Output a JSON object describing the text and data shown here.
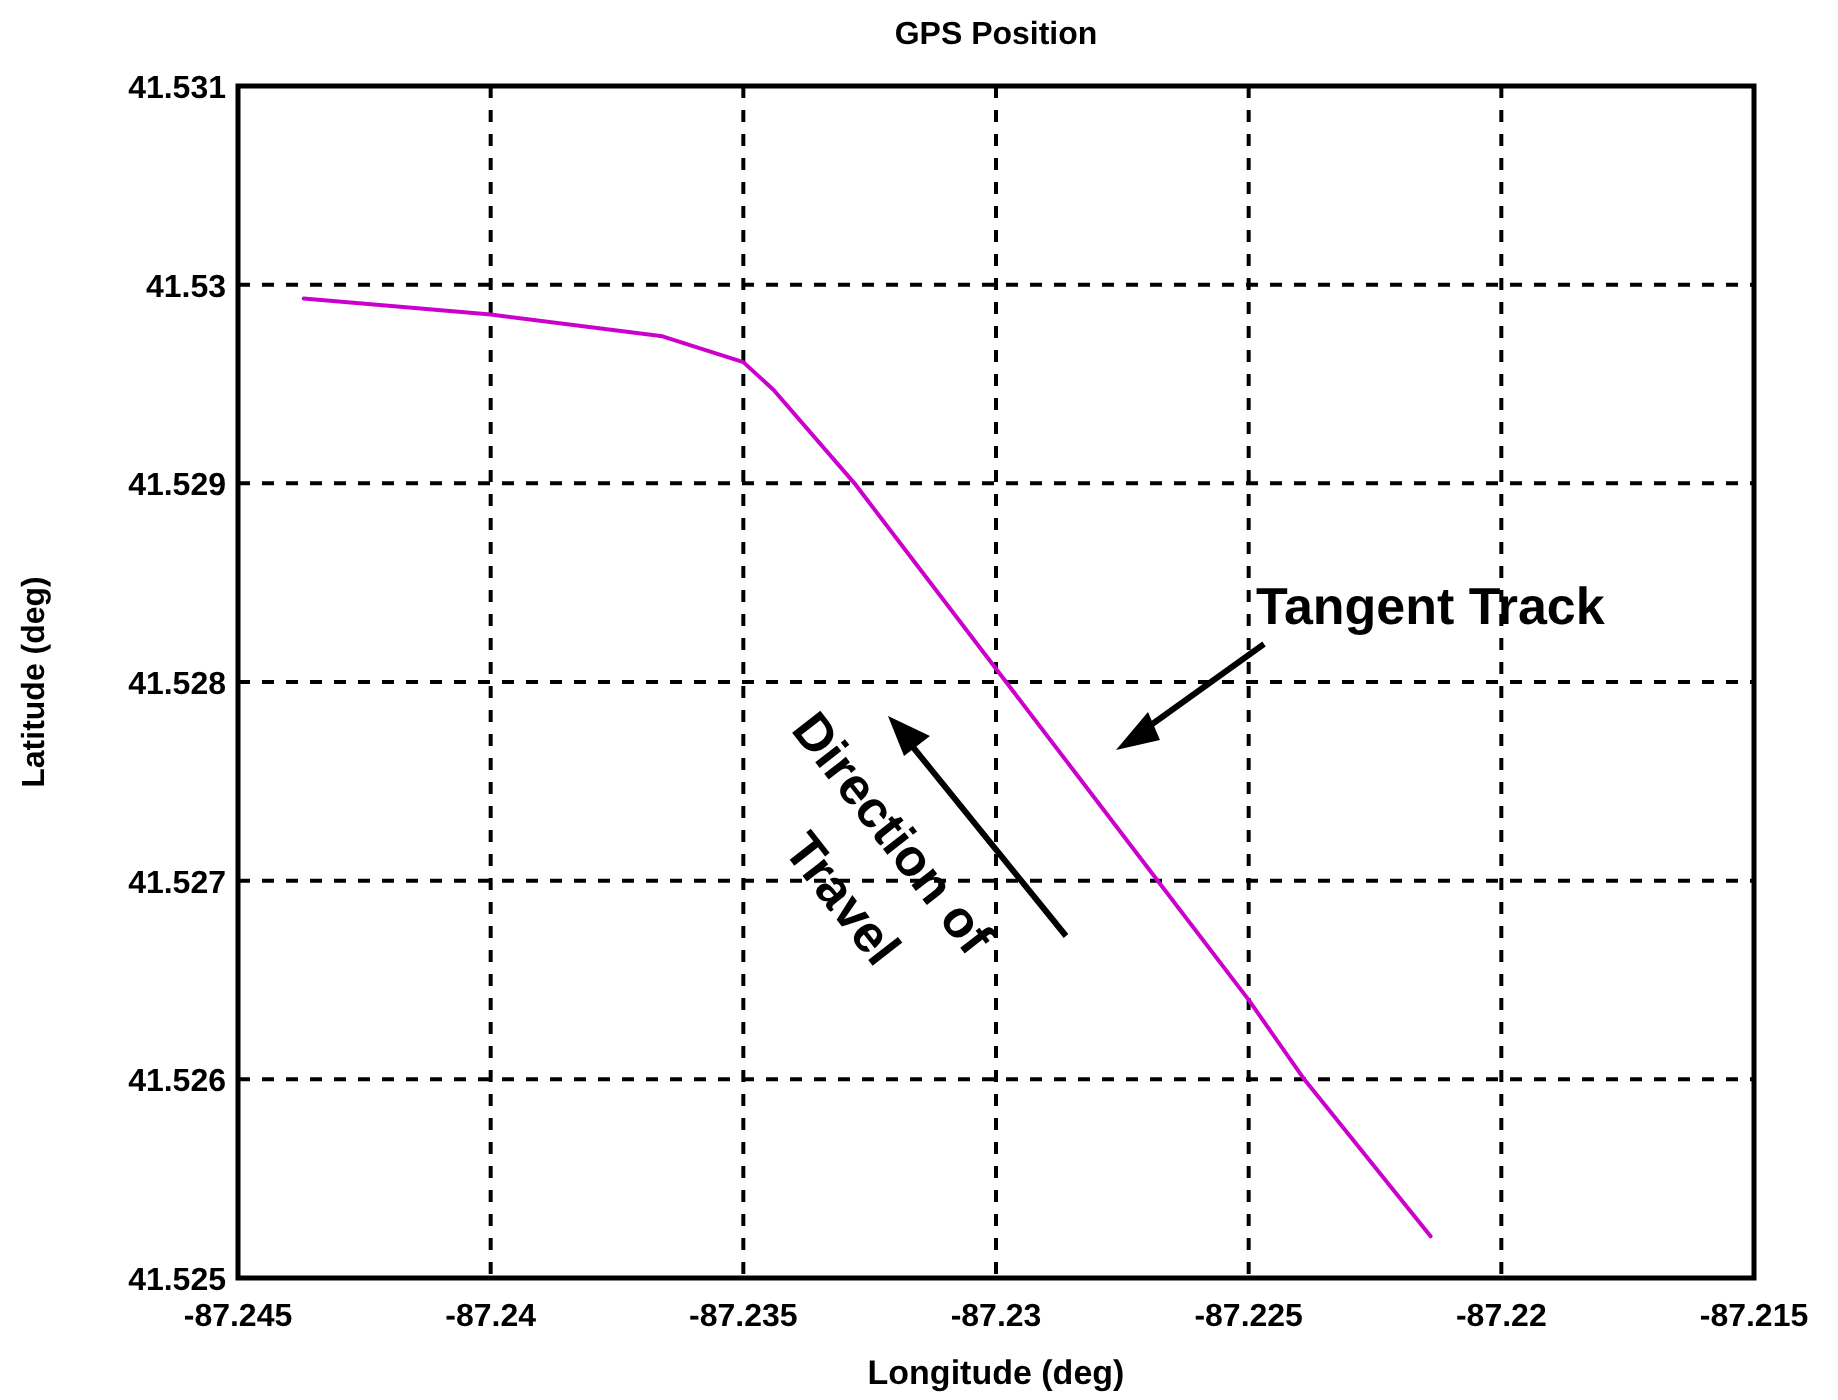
{
  "chart_data": {
    "type": "line",
    "title": "GPS Position",
    "xlabel": "Longitude (deg)",
    "ylabel": "Latitude (deg)",
    "annotations": [
      "Tangent Track",
      "Direction of Travel"
    ],
    "series": [
      {
        "color": "#cc00cc",
        "x": [
          -87.2437,
          -87.24,
          -87.2366,
          -87.235,
          -87.2344,
          -87.2328,
          -87.2298,
          -87.2268,
          -87.225,
          -87.2239,
          -87.2214
        ],
        "values": [
          41.52993,
          41.52985,
          41.52974,
          41.52961,
          41.52947,
          41.529,
          41.528,
          41.527,
          41.5264,
          41.526,
          41.52521
        ]
      }
    ],
    "xlim": [
      -87.245,
      -87.215
    ],
    "xticks": [
      -87.245,
      -87.24,
      -87.235,
      -87.23,
      -87.225,
      -87.22,
      -87.215
    ],
    "ylim": [
      41.525,
      41.531
    ],
    "yticks": [
      41.525,
      41.526,
      41.527,
      41.528,
      41.529,
      41.53,
      41.531
    ],
    "grid": true,
    "line_style": "solid",
    "marker": "none"
  }
}
